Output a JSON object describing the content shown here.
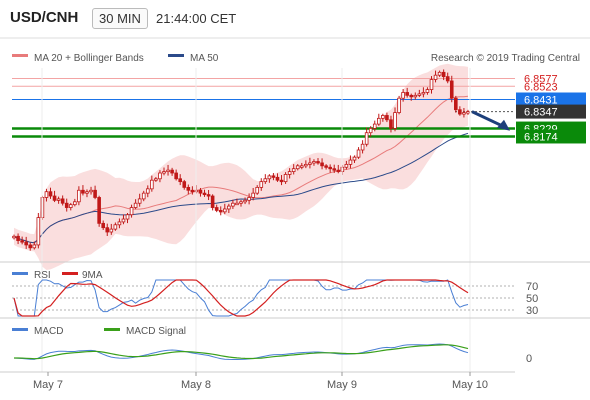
{
  "header": {
    "pair": "USD/CNH",
    "timeframe": "30 MIN",
    "time": "21:44:00 CET"
  },
  "colors": {
    "candle": "#c01818",
    "ma20": "#e87b7b",
    "band_fill": "#f8d3d3",
    "ma50": "#2b4a8a",
    "resistance": "#f3a4a4",
    "support": "#0a8a0a",
    "pivot": "#1a73e8",
    "rsi": "#4a7fd4",
    "rsi_ma": "#d42020",
    "macd": "#4a7fd4",
    "macd_signal": "#3aa01a"
  },
  "chart_data": [
    {
      "type": "candlestick",
      "legend": [
        {
          "label": "MA 20 + Bollinger Bands"
        },
        {
          "label": "MA 50"
        }
      ],
      "credit": "Research © 2019 Trading Central",
      "x_ticks": [
        "May 7",
        "May 8",
        "May 9",
        "May 10"
      ],
      "price_labels": [
        {
          "value": 6.8577,
          "text": "6.8577",
          "kind": "resistance"
        },
        {
          "value": 6.8523,
          "text": "6.8523",
          "kind": "resistance"
        },
        {
          "value": 6.8431,
          "text": "6.8431",
          "kind": "pivot"
        },
        {
          "value": 6.8347,
          "text": "6.8347",
          "kind": "last"
        },
        {
          "value": 6.8229,
          "text": "6.8229",
          "kind": "support"
        },
        {
          "value": 6.8174,
          "text": "6.8174",
          "kind": "support"
        }
      ],
      "ylim": [
        6.735,
        6.865
      ],
      "close_series": [
        6.748,
        6.745,
        6.744,
        6.742,
        6.74,
        6.742,
        6.761,
        6.775,
        6.779,
        6.776,
        6.773,
        6.774,
        6.771,
        6.768,
        6.77,
        6.772,
        6.78,
        6.778,
        6.779,
        6.78,
        6.775,
        6.757,
        6.754,
        6.751,
        6.753,
        6.756,
        6.758,
        6.76,
        6.763,
        6.768,
        6.771,
        6.774,
        6.778,
        6.781,
        6.787,
        6.788,
        6.792,
        6.793,
        6.794,
        6.792,
        6.788,
        6.786,
        6.782,
        6.78,
        6.779,
        6.78,
        6.778,
        6.777,
        6.776,
        6.768,
        6.766,
        6.765,
        6.767,
        6.769,
        6.771,
        6.771,
        6.772,
        6.773,
        6.775,
        6.778,
        6.782,
        6.786,
        6.788,
        6.79,
        6.789,
        6.787,
        6.786,
        6.791,
        6.793,
        6.795,
        6.797,
        6.797,
        6.798,
        6.799,
        6.8,
        6.799,
        6.797,
        6.796,
        6.795,
        6.794,
        6.793,
        6.796,
        6.798,
        6.801,
        6.803,
        6.808,
        6.812,
        6.82,
        6.823,
        6.826,
        6.83,
        6.832,
        6.829,
        6.823,
        6.834,
        6.844,
        6.848,
        6.846,
        6.845,
        6.846,
        6.847,
        6.848,
        6.85,
        6.857,
        6.86,
        6.862,
        6.859,
        6.856,
        6.844,
        6.836,
        6.833,
        6.834,
        6.8347
      ],
      "projection": {
        "from": 6.8347,
        "to": 6.8235,
        "style": "arrow"
      }
    },
    {
      "type": "line",
      "legend": [
        {
          "label": "RSI"
        },
        {
          "label": "9MA"
        }
      ],
      "y_ticks": [
        {
          "value": 70,
          "text": "70"
        },
        {
          "value": 50,
          "text": "50"
        },
        {
          "value": 30,
          "text": "30"
        }
      ],
      "ylim": [
        20,
        80
      ]
    },
    {
      "type": "line",
      "legend": [
        {
          "label": "MACD"
        },
        {
          "label": "MACD Signal"
        }
      ],
      "y_ticks": [
        {
          "value": 0,
          "text": "0"
        }
      ]
    }
  ]
}
